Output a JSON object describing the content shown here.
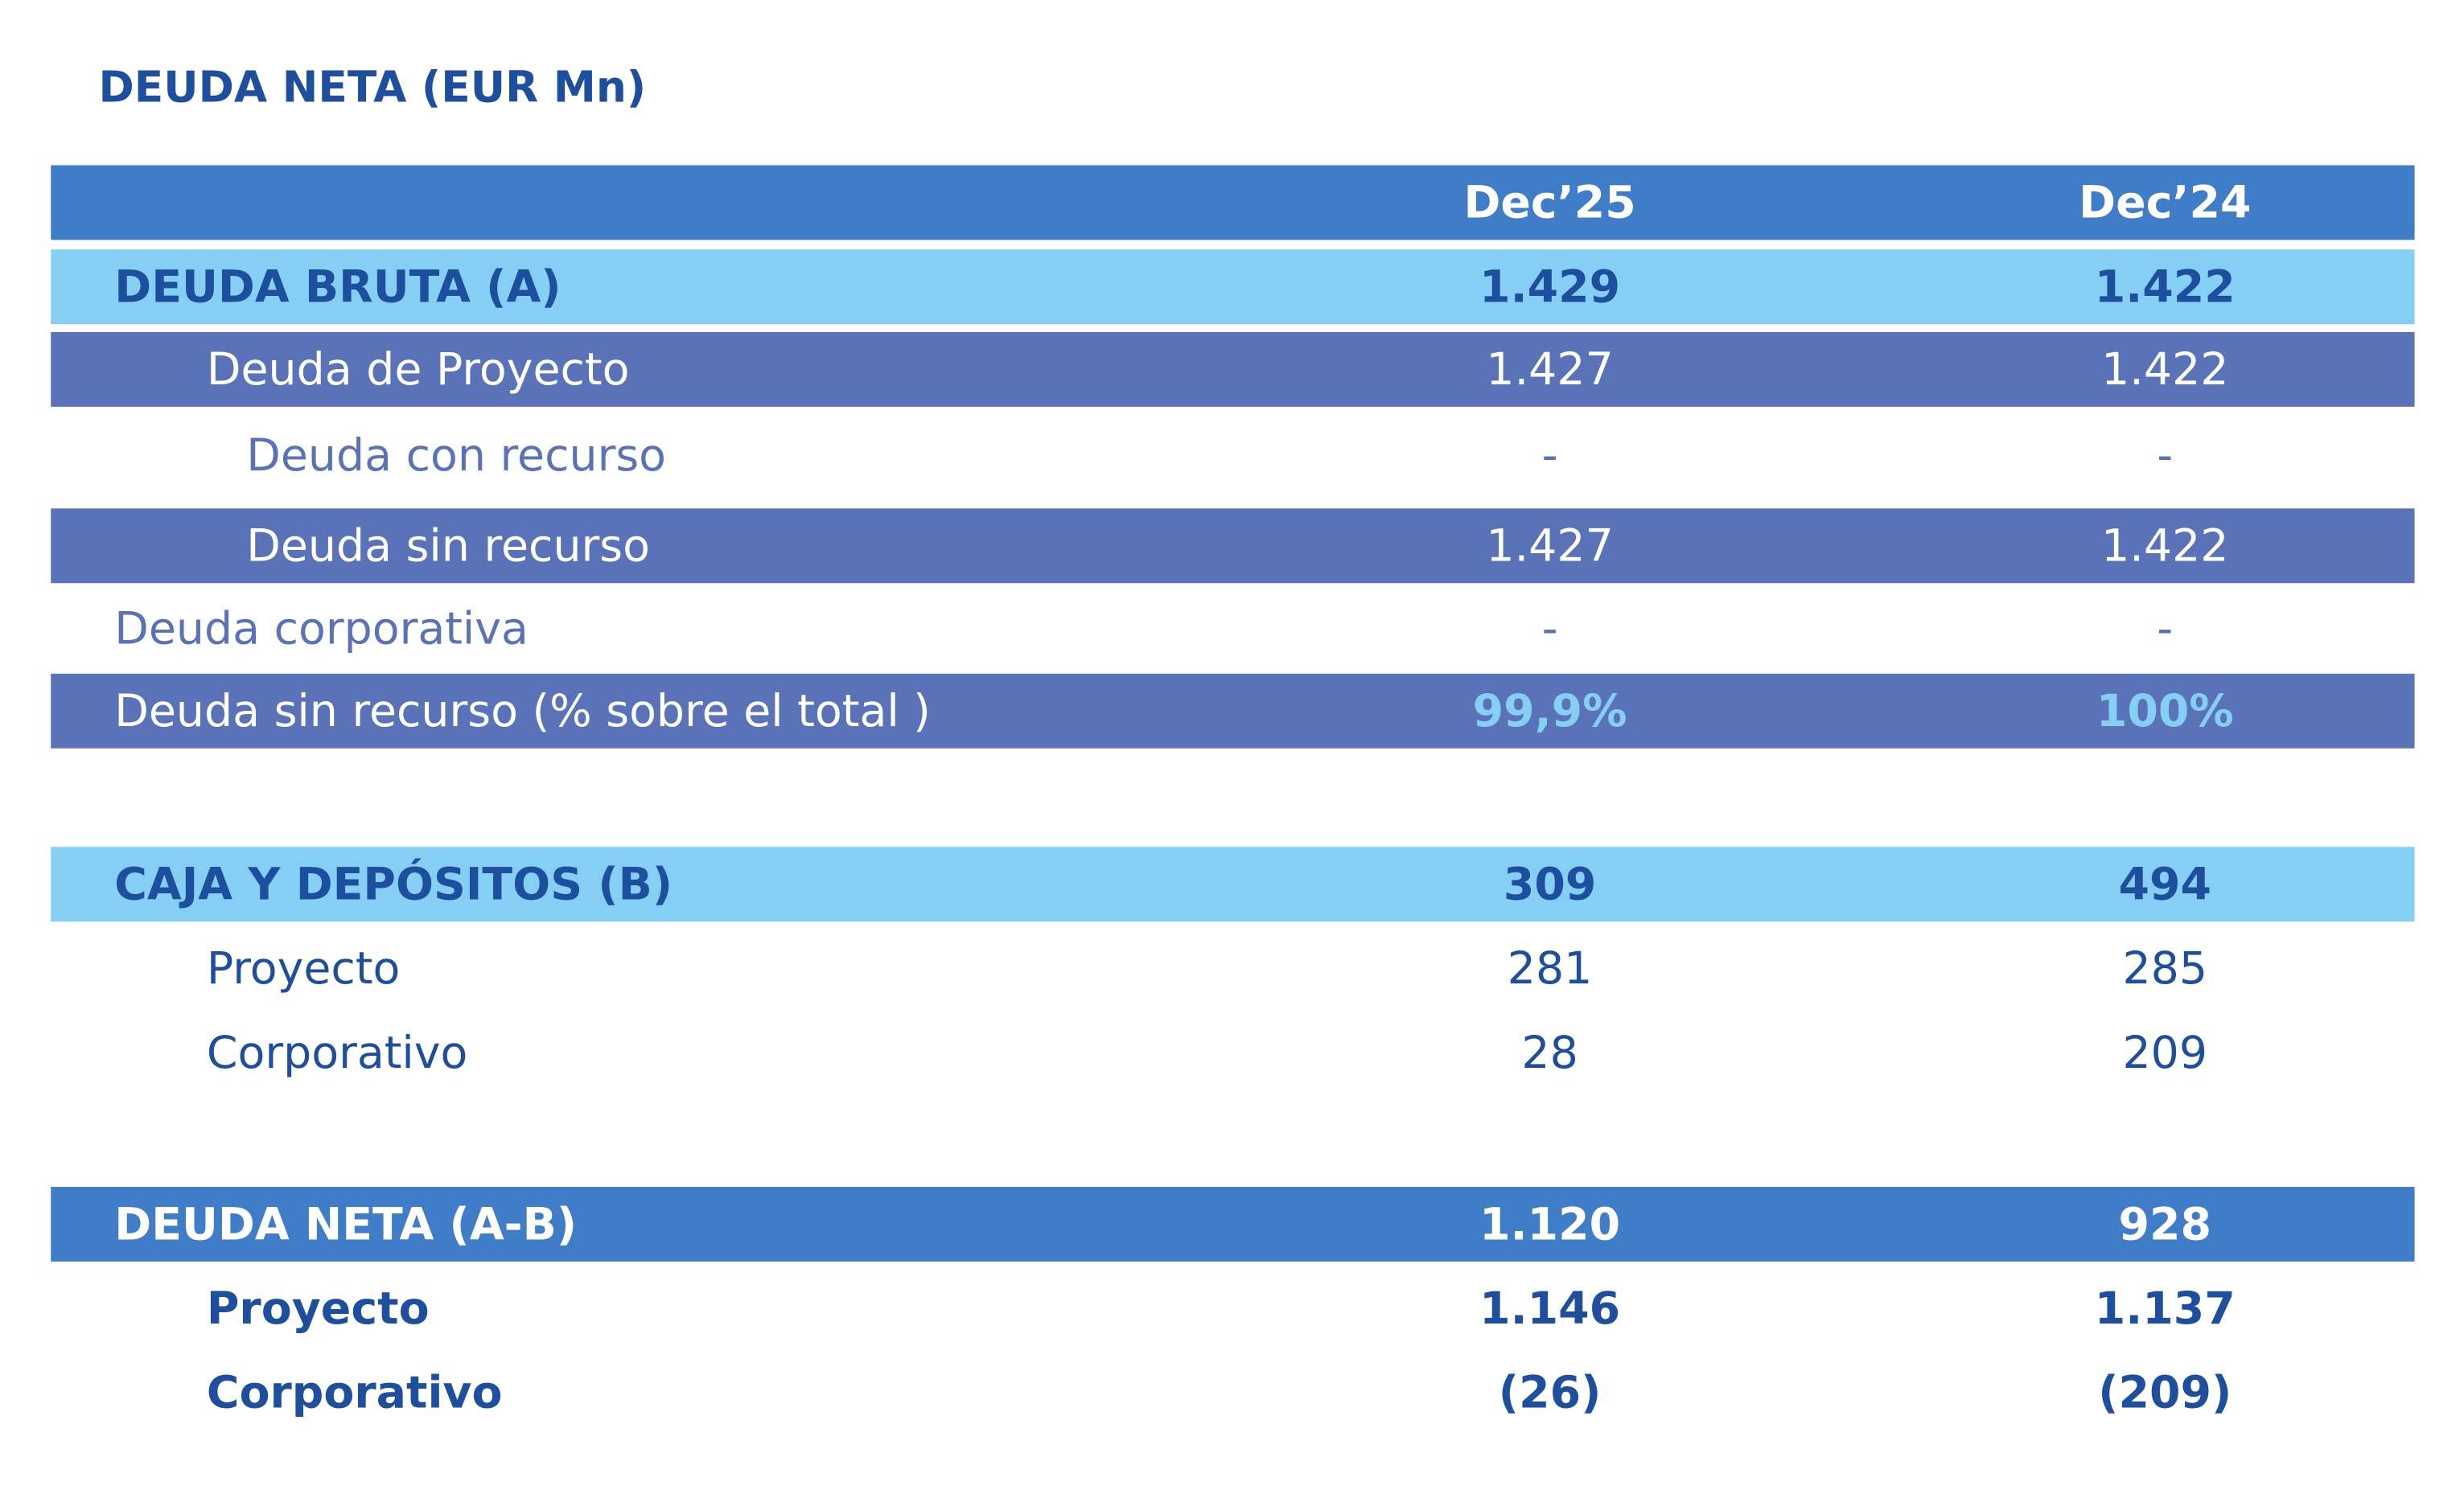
{
  "title": "DEUDA NETA (EUR Mn)",
  "table": {
    "columns": [
      "Dec’25",
      "Dec’24"
    ],
    "rows": [
      {
        "label": "DEUDA BRUTA (A)",
        "values": [
          "1.429",
          "1.422"
        ]
      },
      {
        "label": "Deuda de Proyecto",
        "values": [
          "1.427",
          "1.422"
        ]
      },
      {
        "label": "Deuda con recurso",
        "values": [
          "-",
          "-"
        ]
      },
      {
        "label": "Deuda sin recurso",
        "values": [
          "1.427",
          "1.422"
        ]
      },
      {
        "label": "Deuda corporativa",
        "values": [
          "-",
          "-"
        ]
      },
      {
        "label": "Deuda sin recurso (% sobre el total )",
        "values": [
          "99,9%",
          "100%"
        ]
      },
      {
        "label": "CAJA Y DEPÓSITOS (B)",
        "values": [
          "309",
          "494"
        ]
      },
      {
        "label": "Proyecto",
        "values": [
          "281",
          "285"
        ]
      },
      {
        "label": "Corporativo",
        "values": [
          "28",
          "209"
        ]
      },
      {
        "label": "DEUDA NETA (A-B)",
        "values": [
          "1.120",
          "928"
        ]
      },
      {
        "label": "Proyecto",
        "values": [
          "1.146",
          "1.137"
        ]
      },
      {
        "label": "Corporativo",
        "values": [
          "(26)",
          "(209)"
        ]
      }
    ]
  }
}
